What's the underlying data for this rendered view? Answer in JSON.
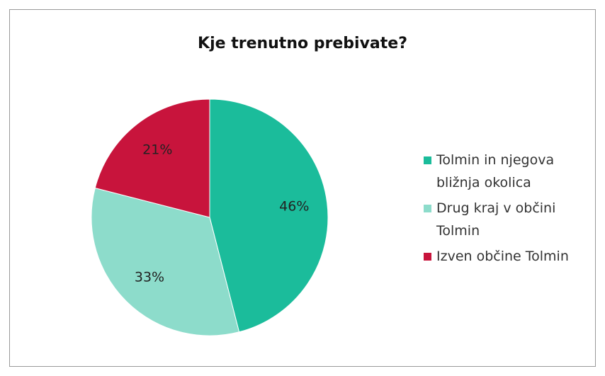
{
  "chart_data": {
    "type": "pie",
    "title": "Kje trenutno prebivate?",
    "categories": [
      "Tolmin in njegova bližnja okolica",
      "Drug kraj v občini Tolmin",
      "Izven občine Tolmin"
    ],
    "values": [
      46,
      33,
      21
    ],
    "value_labels": [
      "46%",
      "33%",
      "21%"
    ],
    "colors": [
      "#1bbc9b",
      "#8ddccb",
      "#c8143c"
    ],
    "legend": "right"
  }
}
